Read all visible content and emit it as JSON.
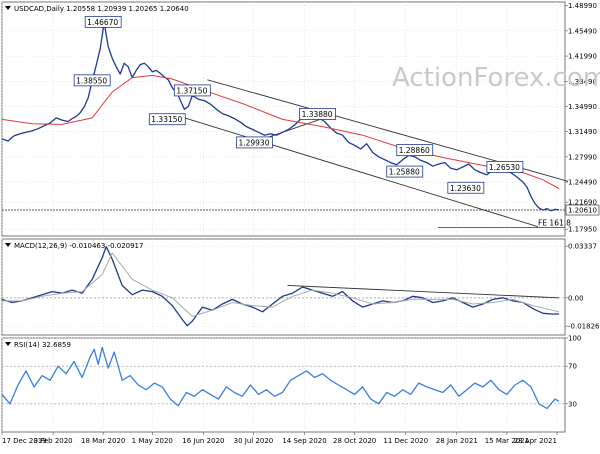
{
  "chart_data": [
    {
      "type": "line",
      "panel": "price",
      "title": "USDCAD,Daily  1.20558 1.20939 1.20265 1.20640",
      "watermark": "ActionForex.com",
      "ylim": [
        1.17,
        1.495
      ],
      "y_ticks": [
        1.1795,
        1.2169,
        1.2449,
        1.2799,
        1.3149,
        1.3499,
        1.3849,
        1.4199,
        1.4549,
        1.4899
      ],
      "y_tick_labels": [
        "1.17950",
        "1.21690",
        "1.24490",
        "1.27990",
        "1.31490",
        "1.34990",
        "1.38490",
        "1.41990",
        "1.45490",
        "1.48990"
      ],
      "current_price": 1.2061,
      "current_price_label": "1.20610",
      "fib_label": "FE 161.8",
      "fib_level": 1.182,
      "series": [
        {
          "color": "#1f3a8f",
          "x": [
            0,
            6,
            12,
            18,
            24,
            30,
            36,
            42,
            48,
            54,
            60,
            66,
            70,
            74,
            78,
            82,
            86,
            90,
            94,
            98,
            102,
            106,
            110,
            114,
            118,
            122,
            126,
            130,
            134,
            138,
            142,
            146,
            150,
            154,
            158,
            162,
            166,
            170,
            176,
            182,
            186,
            190,
            196,
            202,
            208,
            214,
            220,
            226,
            232,
            238,
            244,
            250,
            256,
            262,
            268,
            274,
            280,
            286,
            292,
            298,
            304,
            310,
            316,
            322,
            328,
            334,
            340,
            346,
            352,
            358,
            364,
            370,
            376,
            382,
            388,
            394,
            400,
            406,
            412,
            418,
            424,
            430,
            436,
            442,
            448,
            454,
            460,
            466,
            472,
            478,
            484,
            490,
            496,
            502,
            508,
            514,
            520,
            524,
            528,
            532,
            536,
            540,
            544,
            548,
            552,
            556
          ],
          "values": [
            1.305,
            1.302,
            1.309,
            1.312,
            1.314,
            1.316,
            1.319,
            1.323,
            1.327,
            1.334,
            1.331,
            1.329,
            1.333,
            1.336,
            1.341,
            1.349,
            1.362,
            1.386,
            1.407,
            1.43,
            1.4667,
            1.433,
            1.417,
            1.405,
            1.395,
            1.41,
            1.405,
            1.39,
            1.4,
            1.408,
            1.41,
            1.405,
            1.398,
            1.4,
            1.396,
            1.391,
            1.387,
            1.376,
            1.365,
            1.346,
            1.35,
            1.365,
            1.36,
            1.358,
            1.353,
            1.346,
            1.34,
            1.337,
            1.333,
            1.328,
            1.322,
            1.318,
            1.314,
            1.31,
            1.312,
            1.31,
            1.314,
            1.318,
            1.324,
            1.332,
            1.337,
            1.336,
            1.334,
            1.329,
            1.32,
            1.313,
            1.31,
            1.3,
            1.296,
            1.291,
            1.298,
            1.286,
            1.28,
            1.276,
            1.272,
            1.269,
            1.276,
            1.282,
            1.28,
            1.275,
            1.272,
            1.267,
            1.27,
            1.272,
            1.264,
            1.262,
            1.266,
            1.27,
            1.262,
            1.258,
            1.255,
            1.262,
            1.265,
            1.262,
            1.258,
            1.252,
            1.245,
            1.238,
            1.225,
            1.215,
            1.209,
            1.206,
            1.208,
            1.205,
            1.207,
            1.2064
          ]
        },
        {
          "color": "#e03a3a",
          "x": [
            0,
            30,
            60,
            90,
            110,
            130,
            150,
            170,
            200,
            240,
            280,
            320,
            360,
            400,
            440,
            480,
            520,
            540,
            556
          ],
          "values": [
            1.332,
            1.326,
            1.325,
            1.334,
            1.37,
            1.39,
            1.393,
            1.388,
            1.373,
            1.354,
            1.332,
            1.322,
            1.31,
            1.292,
            1.279,
            1.268,
            1.258,
            1.248,
            1.236
          ]
        }
      ],
      "annotations": [
        {
          "text": "1.46670",
          "x": 101,
          "y": 1.4667
        },
        {
          "text": "1.38550",
          "x": 90,
          "y": 1.3855
        },
        {
          "text": "1.37150",
          "x": 190,
          "y": 1.3715
        },
        {
          "text": "1.33150",
          "x": 165,
          "y": 1.3315
        },
        {
          "text": "1.29930",
          "x": 252,
          "y": 1.2993
        },
        {
          "text": "1.33880",
          "x": 315,
          "y": 1.3388
        },
        {
          "text": "1.28860",
          "x": 412,
          "y": 1.2886
        },
        {
          "text": "1.25880",
          "x": 402,
          "y": 1.2588
        },
        {
          "text": "1.23630",
          "x": 463,
          "y": 1.2363
        },
        {
          "text": "1.26530",
          "x": 502,
          "y": 1.2653
        }
      ],
      "channel_lines": [
        {
          "color": "#333333",
          "points": [
            [
              205,
              1.387
            ],
            [
              565,
              1.246
            ]
          ]
        },
        {
          "color": "#333333",
          "points": [
            [
              180,
              1.335
            ],
            [
              535,
              1.183
            ]
          ]
        },
        {
          "color": "#333333",
          "points": [
            [
              255,
              1.302
            ],
            [
              330,
              1.338
            ]
          ]
        }
      ]
    },
    {
      "type": "line",
      "panel": "macd",
      "title": "MACD(12,26,9) -0.010463 -0.020917",
      "ylim": [
        -0.024,
        0.038
      ],
      "y_ticks": [
        0.03337,
        0.0,
        -0.018262
      ],
      "y_tick_labels": [
        "0.03337",
        "0.00",
        "-0.018262"
      ],
      "series": [
        {
          "color": "#1f3a8f",
          "x": [
            0,
            10,
            20,
            30,
            40,
            50,
            60,
            70,
            80,
            90,
            100,
            104,
            110,
            120,
            130,
            140,
            150,
            160,
            170,
            180,
            185,
            190,
            200,
            210,
            220,
            230,
            240,
            250,
            260,
            270,
            280,
            290,
            300,
            310,
            320,
            330,
            340,
            350,
            360,
            370,
            380,
            390,
            400,
            410,
            420,
            430,
            440,
            450,
            460,
            470,
            480,
            490,
            500,
            510,
            520,
            530,
            540,
            550,
            556
          ],
          "values": [
            -0.001,
            -0.003,
            -0.002,
            0.0,
            0.002,
            0.004,
            0.003,
            0.005,
            0.003,
            0.012,
            0.026,
            0.033,
            0.025,
            0.008,
            0.002,
            0.005,
            0.004,
            0.001,
            -0.005,
            -0.014,
            -0.018,
            -0.015,
            -0.006,
            -0.008,
            -0.004,
            -0.001,
            -0.004,
            -0.006,
            -0.009,
            -0.004,
            0.001,
            0.003,
            0.007,
            0.005,
            0.003,
            0.001,
            0.004,
            -0.002,
            -0.006,
            -0.004,
            -0.002,
            -0.003,
            -0.002,
            0.001,
            0.0,
            -0.003,
            -0.002,
            0.0,
            -0.003,
            -0.006,
            -0.004,
            -0.001,
            0.0,
            -0.002,
            -0.003,
            -0.007,
            -0.01,
            -0.0105,
            -0.0104
          ]
        },
        {
          "color": "#aaaaaa",
          "x": [
            0,
            20,
            40,
            60,
            80,
            100,
            110,
            130,
            150,
            170,
            190,
            210,
            230,
            250,
            270,
            290,
            310,
            330,
            350,
            370,
            390,
            410,
            430,
            450,
            470,
            490,
            510,
            530,
            556
          ],
          "values": [
            -0.002,
            -0.002,
            0.001,
            0.003,
            0.004,
            0.015,
            0.029,
            0.012,
            0.005,
            0.0,
            -0.012,
            -0.008,
            -0.003,
            -0.005,
            -0.006,
            0.001,
            0.005,
            0.003,
            0.0,
            -0.004,
            -0.003,
            -0.001,
            -0.001,
            -0.001,
            -0.004,
            -0.003,
            -0.001,
            -0.005,
            -0.009
          ]
        }
      ],
      "trendline": {
        "color": "#333333",
        "points": [
          [
            285,
            0.008
          ],
          [
            556,
            0.0
          ]
        ]
      }
    },
    {
      "type": "line",
      "panel": "rsi",
      "title": "RSI(14) 32.6859",
      "ylim": [
        0,
        100
      ],
      "y_ticks": [
        100,
        70,
        30
      ],
      "y_tick_labels": [
        "100",
        "70",
        "30"
      ],
      "series": [
        {
          "color": "#3b7de0",
          "x": [
            0,
            8,
            16,
            24,
            32,
            40,
            48,
            56,
            64,
            72,
            80,
            88,
            92,
            96,
            100,
            106,
            112,
            120,
            128,
            136,
            144,
            152,
            160,
            168,
            176,
            184,
            192,
            200,
            208,
            216,
            224,
            232,
            240,
            248,
            256,
            264,
            272,
            280,
            288,
            296,
            304,
            312,
            320,
            328,
            336,
            344,
            352,
            360,
            368,
            376,
            384,
            392,
            400,
            408,
            416,
            424,
            432,
            440,
            448,
            456,
            464,
            472,
            480,
            488,
            496,
            504,
            512,
            520,
            528,
            536,
            544,
            552,
            556
          ],
          "values": [
            40,
            30,
            50,
            65,
            48,
            60,
            55,
            70,
            62,
            75,
            58,
            80,
            88,
            72,
            90,
            68,
            85,
            55,
            60,
            50,
            45,
            52,
            48,
            35,
            28,
            42,
            38,
            45,
            40,
            35,
            48,
            42,
            38,
            50,
            40,
            45,
            38,
            42,
            55,
            60,
            65,
            58,
            62,
            55,
            50,
            45,
            40,
            48,
            35,
            30,
            42,
            38,
            45,
            40,
            52,
            48,
            45,
            42,
            50,
            38,
            45,
            52,
            48,
            55,
            45,
            40,
            50,
            55,
            48,
            30,
            25,
            35,
            32.7
          ]
        }
      ]
    }
  ],
  "x_axis": {
    "labels": [
      "17 Dec 2019",
      "3 Feb 2020",
      "18 Mar 2020",
      "1 May 2020",
      "16 Jun 2020",
      "30 Jul 2020",
      "14 Sep 2020",
      "28 Oct 2020",
      "11 Dec 2020",
      "28 Jan 2021",
      "15 Mar 2021",
      "28 Apr 2021"
    ],
    "positions": [
      0,
      51,
      101,
      150,
      201,
      251,
      302,
      352,
      403,
      454,
      504,
      554
    ]
  }
}
